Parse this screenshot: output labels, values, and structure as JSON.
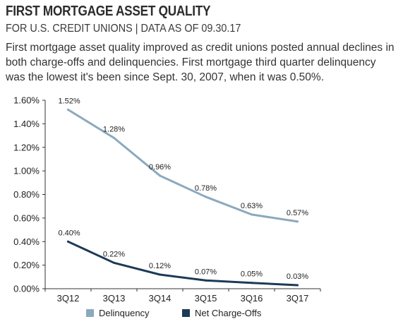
{
  "header": {
    "title": "FIRST MORTGAGE ASSET QUALITY",
    "subtitle": "FOR U.S. CREDIT UNIONS | DATA AS OF 09.30.17",
    "description": "First mortgage asset quality improved as credit unions posted annual declines in both charge-offs and delinquencies. First mortgage third quarter delinquency was the lowest it's been since Sept. 30, 2007, when it was 0.50%."
  },
  "chart_data": {
    "type": "line",
    "categories": [
      "3Q12",
      "3Q13",
      "3Q14",
      "3Q15",
      "3Q16",
      "3Q17"
    ],
    "ylim": [
      0,
      1.6
    ],
    "yticks": [
      0,
      0.2,
      0.4,
      0.6,
      0.8,
      1.0,
      1.2,
      1.4,
      1.6
    ],
    "ytick_labels": [
      "0.00%",
      "0.20%",
      "0.40%",
      "0.60%",
      "0.80%",
      "1.00%",
      "1.20%",
      "1.40%",
      "1.60%"
    ],
    "grid": false,
    "legend_position": "bottom",
    "series": [
      {
        "name": "Delinquency",
        "color": "#8ba9bd",
        "values": [
          1.52,
          1.28,
          0.96,
          0.78,
          0.63,
          0.57
        ],
        "labels": [
          "1.52%",
          "1.28%",
          "0.96%",
          "0.78%",
          "0.63%",
          "0.57%"
        ]
      },
      {
        "name": "Net Charge-Offs",
        "color": "#1b3a57",
        "values": [
          0.4,
          0.22,
          0.12,
          0.07,
          0.05,
          0.03
        ],
        "labels": [
          "0.40%",
          "0.22%",
          "0.12%",
          "0.07%",
          "0.05%",
          "0.03%"
        ]
      }
    ]
  }
}
